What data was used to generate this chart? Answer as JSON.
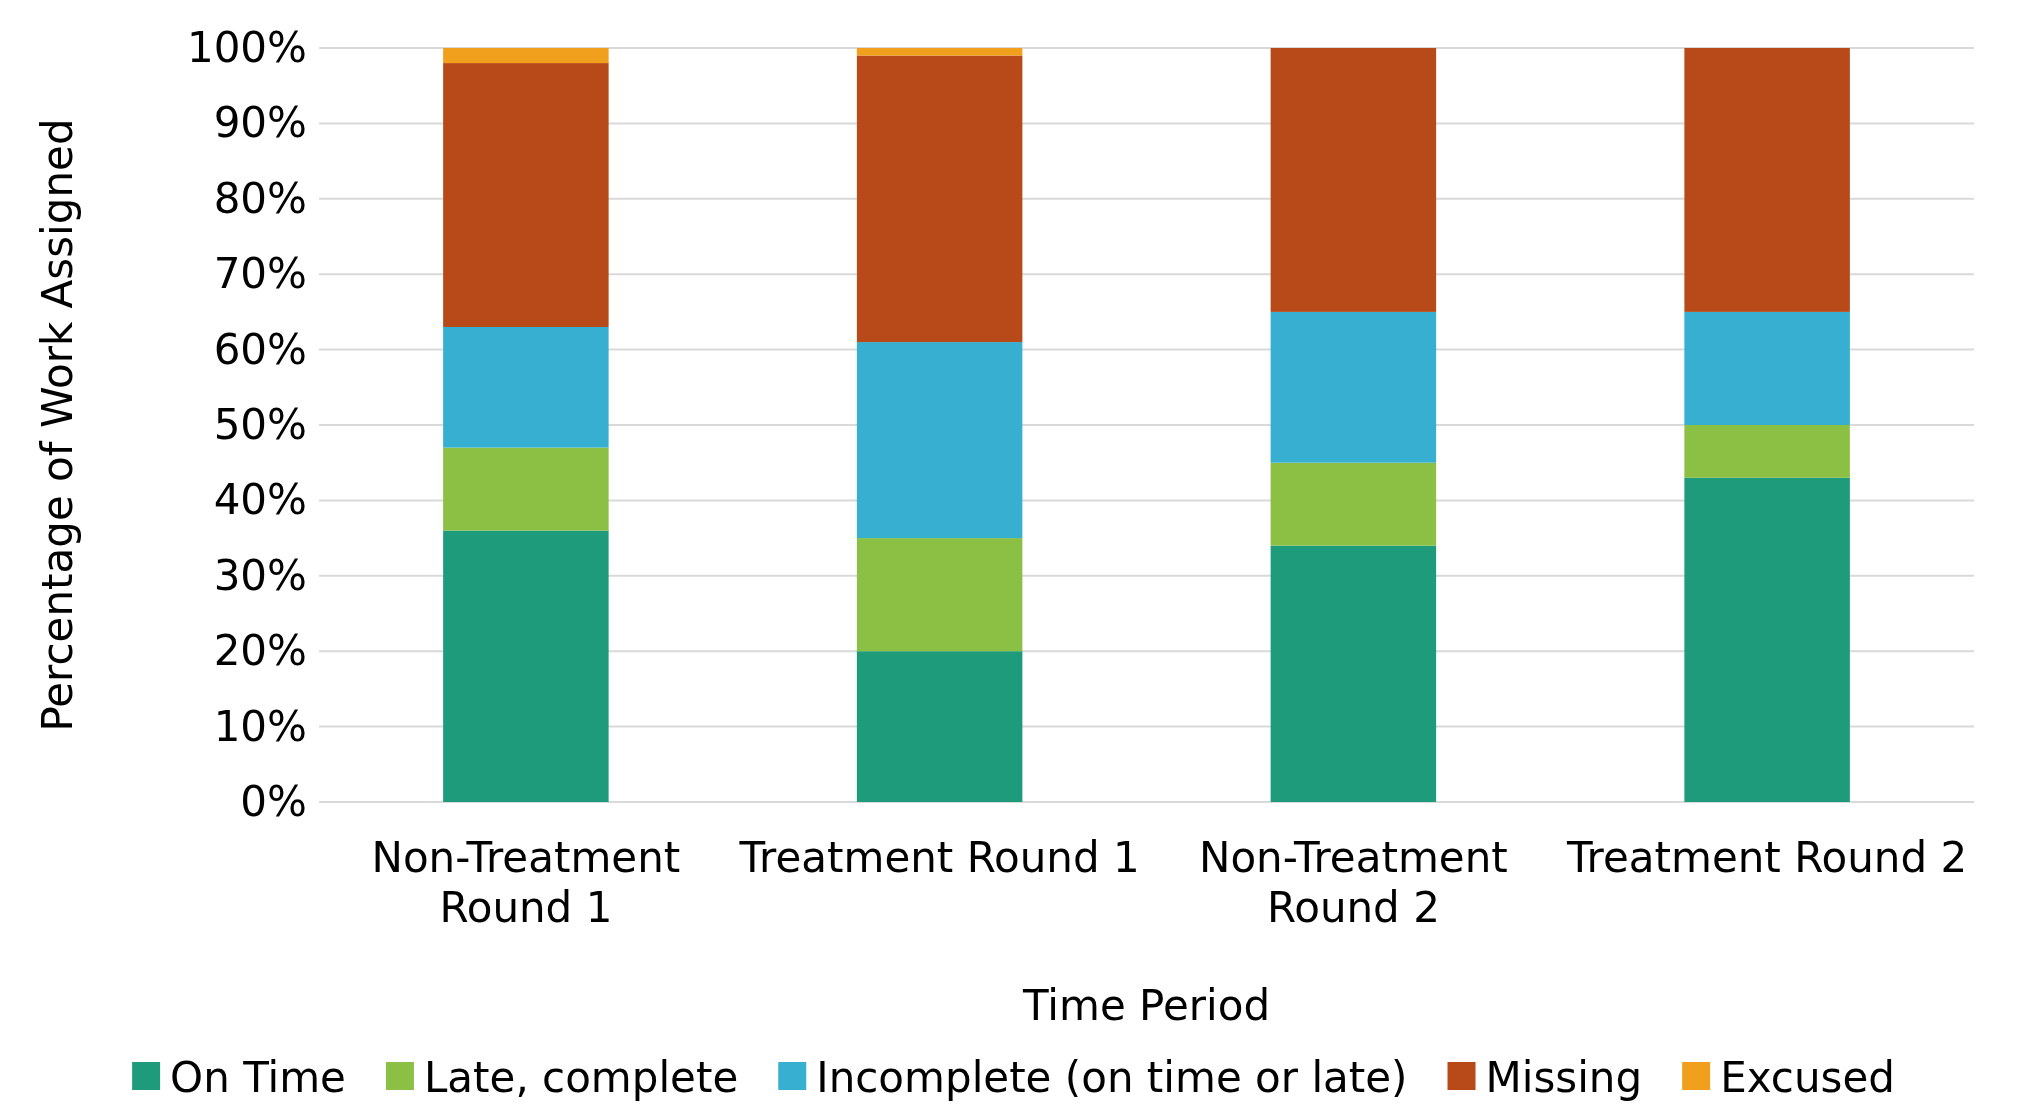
{
  "chart_data": {
    "type": "bar",
    "stacked": true,
    "xlabel": "Time Period",
    "ylabel": "Percentage of Work Assigned",
    "categories": [
      "Non-Treatment Round 1",
      "Treatment Round 1",
      "Non-Treatment Round 2",
      "Treatment Round 2"
    ],
    "series": [
      {
        "name": "On Time",
        "color": "#1e9b7a",
        "values": [
          36,
          20,
          34,
          43
        ]
      },
      {
        "name": "Late, complete",
        "color": "#8bc045",
        "values": [
          11,
          15,
          11,
          7
        ]
      },
      {
        "name": "Incomplete (on time or late)",
        "color": "#37afd0",
        "values": [
          16,
          26,
          20,
          15
        ]
      },
      {
        "name": "Missing",
        "color": "#b84a1a",
        "values": [
          35,
          38,
          35,
          35
        ]
      },
      {
        "name": "Excused",
        "color": "#f0a01c",
        "values": [
          2,
          1,
          0,
          0
        ]
      }
    ],
    "ylim": [
      0,
      100
    ],
    "yticks": [
      {
        "value": 0,
        "label": "0%"
      },
      {
        "value": 10,
        "label": "10%"
      },
      {
        "value": 20,
        "label": "20%"
      },
      {
        "value": 30,
        "label": "30%"
      },
      {
        "value": 40,
        "label": "40%"
      },
      {
        "value": 50,
        "label": "50%"
      },
      {
        "value": 60,
        "label": "60%"
      },
      {
        "value": 70,
        "label": "70%"
      },
      {
        "value": 80,
        "label": "80%"
      },
      {
        "value": 90,
        "label": "90%"
      },
      {
        "value": 100,
        "label": "100%"
      }
    ],
    "grid": "y",
    "legend": "bottom"
  }
}
